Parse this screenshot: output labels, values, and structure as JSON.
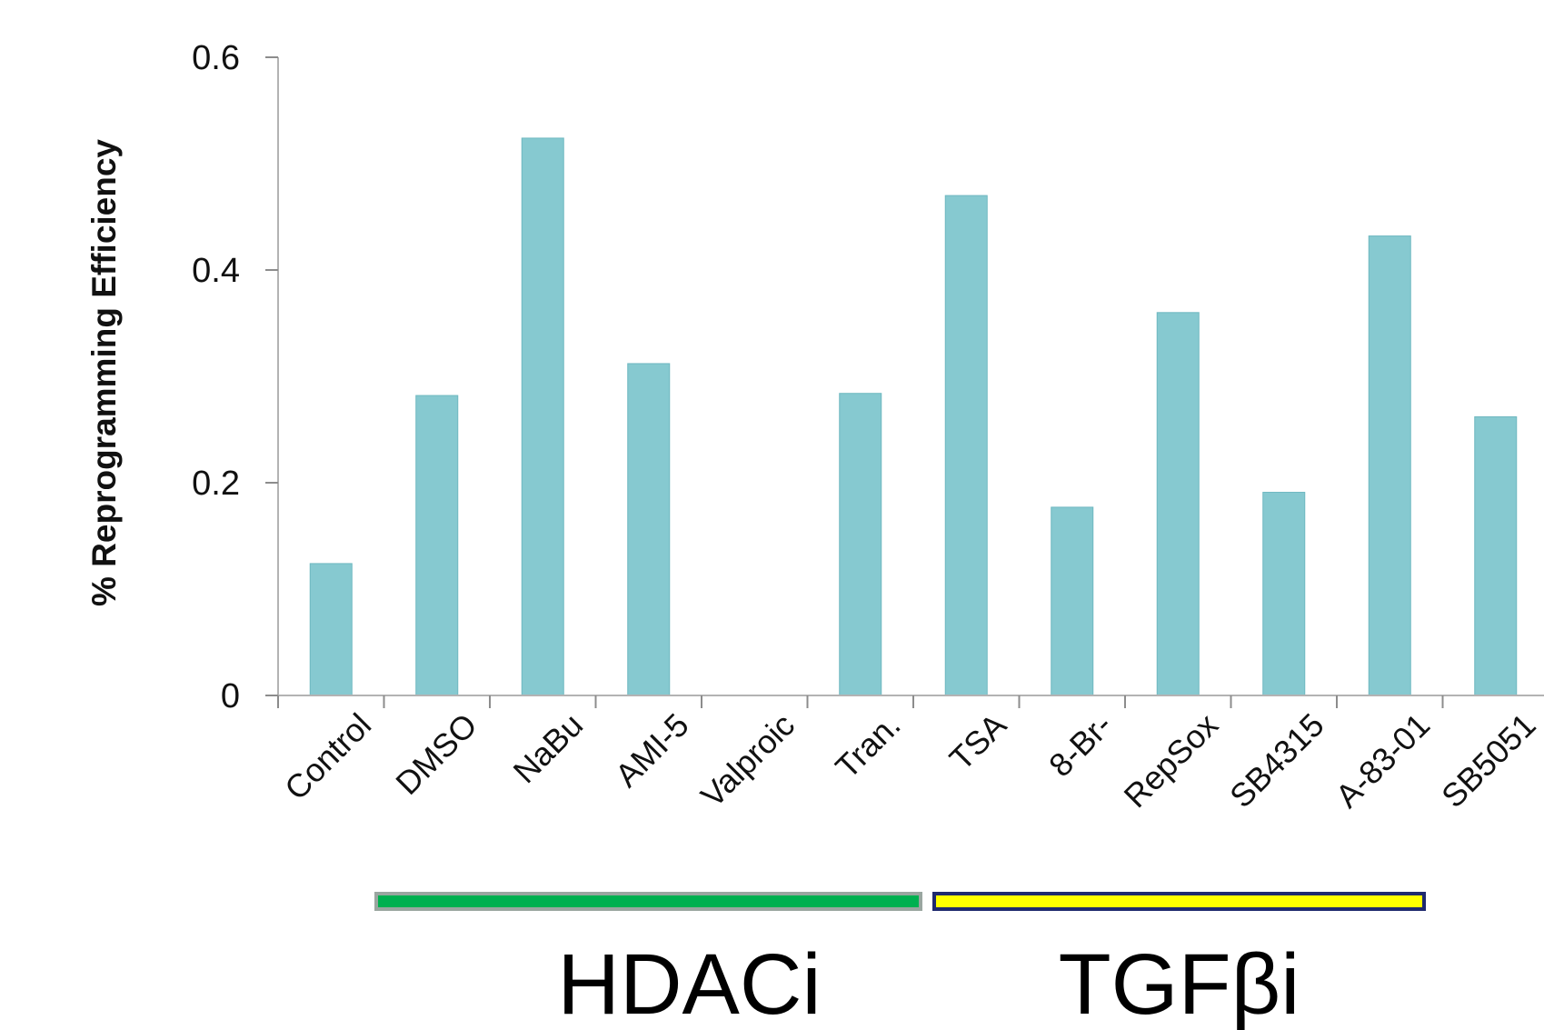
{
  "chart_data": {
    "type": "bar",
    "categories": [
      "Control",
      "DMSO",
      "NaBu",
      "AMI-5",
      "Valproic",
      "Tran.",
      "TSA",
      "8-Br-",
      "RepSox",
      "SB4315",
      "A-83-01",
      "SB5051"
    ],
    "values": [
      0.124,
      0.282,
      0.524,
      0.312,
      0.0,
      0.284,
      0.47,
      0.177,
      0.36,
      0.191,
      0.432,
      0.262
    ],
    "title": "",
    "xlabel": "",
    "ylabel": "% Reprogramming Efficiency",
    "ylim": [
      0,
      0.6
    ],
    "yticks": [
      0,
      0.2,
      0.4,
      0.6
    ],
    "ytick_labels": [
      "0",
      "0.2",
      "0.4",
      "0.6"
    ],
    "grid": false,
    "bar_color": "#86c9d0",
    "groups": [
      {
        "label": "HDACi",
        "start_category": "DMSO",
        "end_category": "Tran.",
        "fill_color": "#00b050",
        "border_color": "#9aa6a0"
      },
      {
        "label": "TGFβi",
        "start_category": "TSA",
        "end_category": "SB5051",
        "fill_color": "#ffff00",
        "border_color": "#1f2a6e"
      }
    ]
  }
}
